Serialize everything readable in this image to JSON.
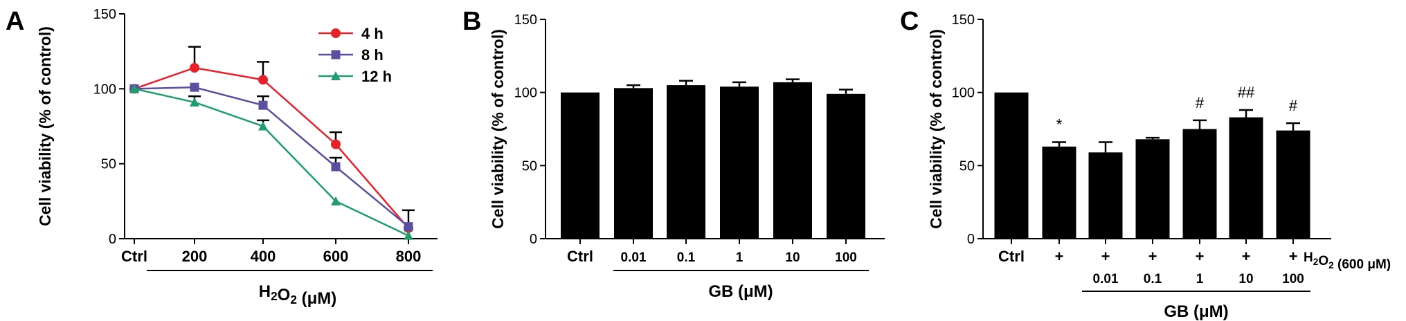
{
  "chart_data": [
    {
      "panel": "A",
      "type": "line",
      "categories": [
        "Ctrl",
        "200",
        "400",
        "600",
        "800"
      ],
      "ylabel": "Cell viability (% of control)",
      "xlabel": "H₂O₂ (μM)",
      "ylim": [
        0,
        150
      ],
      "yticks": [
        "0",
        "50",
        "100",
        "150"
      ],
      "legend_position": "top-right",
      "series": [
        {
          "name": "4 h",
          "color": "#e8202a",
          "marker": "circle",
          "values": [
            100,
            114,
            106,
            63,
            7
          ],
          "errors": [
            0,
            14,
            12,
            8,
            12
          ]
        },
        {
          "name": "8 h",
          "color": "#5a4fa0",
          "marker": "square",
          "values": [
            100,
            101,
            89,
            48,
            8
          ],
          "errors": [
            0,
            0,
            6,
            6,
            0
          ]
        },
        {
          "name": "12 h",
          "color": "#1f9e6d",
          "marker": "triangle",
          "values": [
            100,
            91,
            75,
            25,
            2
          ],
          "errors": [
            0,
            4,
            4,
            0,
            0
          ]
        }
      ]
    },
    {
      "panel": "B",
      "type": "bar",
      "categories": [
        "Ctrl",
        "0.01",
        "0.1",
        "1",
        "10",
        "100"
      ],
      "ylabel": "Cell viability (% of control)",
      "xlabel": "GB (μM)",
      "ylim": [
        0,
        150
      ],
      "yticks": [
        "0",
        "50",
        "100",
        "150"
      ],
      "bar_color": "#000000",
      "values": [
        100,
        103,
        105,
        104,
        107,
        99
      ],
      "errors": [
        0,
        2,
        3,
        3,
        2,
        3
      ]
    },
    {
      "panel": "C",
      "type": "bar",
      "categories": [
        "Ctrl",
        "+",
        "+",
        "+",
        "+",
        "+",
        "+"
      ],
      "sub_categories": [
        "",
        "",
        "0.01",
        "0.1",
        "1",
        "10",
        "100"
      ],
      "row_label": "H₂O₂ (600 μM)",
      "ylabel": "Cell viability (% of control)",
      "xlabel": "GB (μM)",
      "ylim": [
        0,
        150
      ],
      "yticks": [
        "0",
        "50",
        "100",
        "150"
      ],
      "bar_color": "#000000",
      "values": [
        100,
        63,
        59,
        68,
        75,
        83,
        74
      ],
      "errors": [
        0,
        3,
        7,
        1,
        6,
        5,
        5
      ],
      "annotations": [
        "",
        "*",
        "",
        "",
        "#",
        "##",
        "#"
      ]
    }
  ]
}
